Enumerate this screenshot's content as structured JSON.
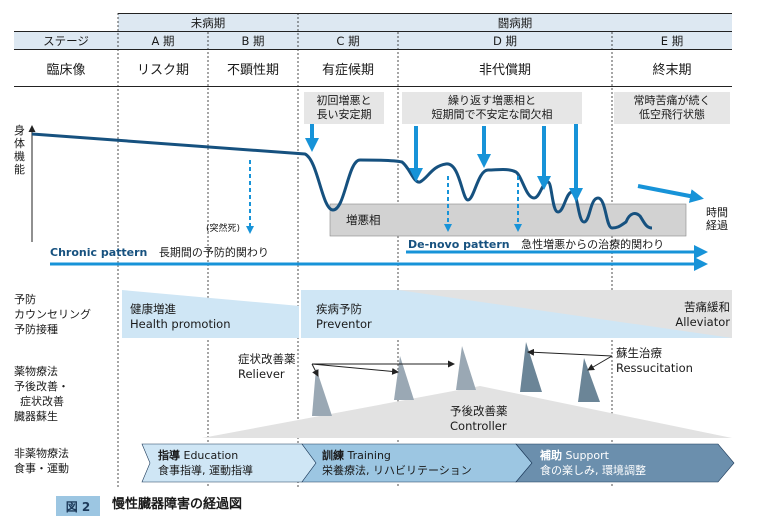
{
  "header": {
    "group_presymptomatic": "未病期",
    "group_illness": "闘病期",
    "stage_label": "ステージ",
    "stages": [
      {
        "period": "A 期",
        "name": "リスク期"
      },
      {
        "period": "B 期",
        "name": "不顕性期"
      },
      {
        "period": "C 期",
        "name": "有症候期"
      },
      {
        "period": "D 期",
        "name": "非代償期"
      },
      {
        "period": "E 期",
        "name": "終末期"
      }
    ],
    "clinical_label": "臨床像"
  },
  "graph": {
    "y_axis_label": "身体機能",
    "x_axis_label_line1": "時間",
    "x_axis_label_line2": "経過",
    "sudden_death": "(突然死)",
    "exacerbation": "増悪相",
    "note_c_line1": "初回増悪と",
    "note_c_line2": "長い安定期",
    "note_d_line1": "繰り返す増悪相と",
    "note_d_line2": "短期間で不安定な間欠相",
    "note_e_line1": "常時苦痛が続く",
    "note_e_line2": "低空飛行状態",
    "chronic_pattern_en": "Chronic pattern",
    "chronic_pattern_jp": "長期間の予防的関わり",
    "denovo_pattern_en": "De-novo pattern",
    "denovo_pattern_jp": "急性増悪からの治療的関わり"
  },
  "rows": {
    "prevention_line1": "予防",
    "prevention_line2": "カウンセリング",
    "prevention_line3": "予防接種",
    "drug_line1": "薬物療法",
    "drug_line2": "予後改善・",
    "drug_line3": "症状改善",
    "drug_line4": "臓器蘇生",
    "nondrug_line1": "非薬物療法",
    "nondrug_line2": "食事・運動"
  },
  "prevention": {
    "health_jp": "健康増進",
    "health_en": "Health promotion",
    "disease_jp": "疾病予防",
    "disease_en": "Preventor",
    "palliative_jp": "苦痛緩和",
    "palliative_en": "Alleviator"
  },
  "drugs": {
    "reliever_jp": "症状改善薬",
    "reliever_en": "Reliever",
    "resuscitation_jp": "蘇生治療",
    "resuscitation_en": "Ressucitation",
    "controller_jp": "予後改善薬",
    "controller_en": "Controller"
  },
  "nondrug": {
    "education_jp": "指導",
    "education_en": "Education",
    "education_sub": "食事指導, 運動指導",
    "training_jp": "訓練",
    "training_en": "Training",
    "training_sub": "栄養療法, リハビリテーション",
    "support_jp": "補助",
    "support_en": "Support",
    "support_sub": "食の楽しみ, 環境調整"
  },
  "caption": {
    "figure_no": "図 2",
    "title": "慢性臓器障害の経過図"
  },
  "colors": {
    "accent_blue": "#1793d8",
    "curve": "#16517f",
    "header_fill": "#dde8f2",
    "light_blue": "#cfe6f5",
    "gray_fill": "#cccccc"
  }
}
